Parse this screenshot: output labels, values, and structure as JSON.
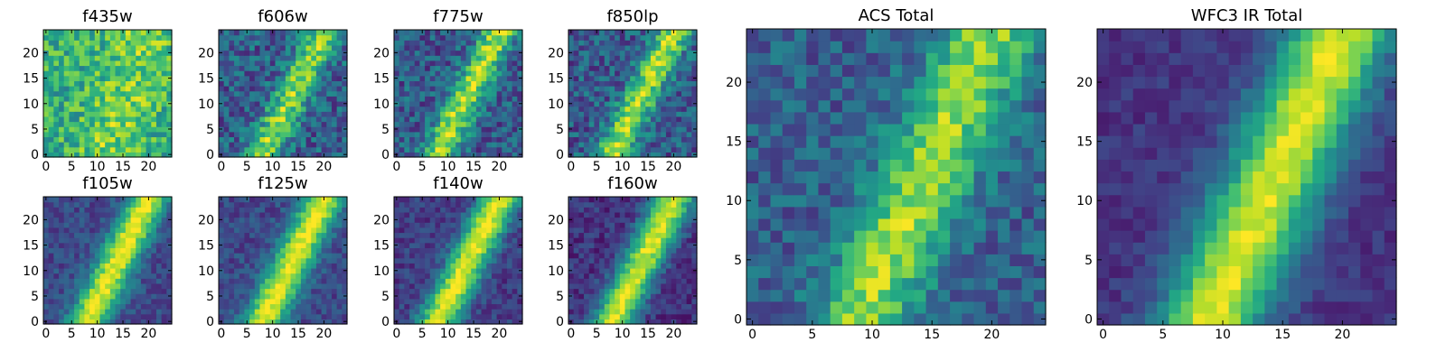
{
  "chart_data": [
    {
      "type": "heatmap",
      "title": "f435w",
      "grid_size": 25,
      "colormap": "viridis",
      "xticks": [
        0,
        5,
        10,
        15,
        20
      ],
      "yticks": [
        0,
        5,
        10,
        15,
        20
      ],
      "xlim": [
        -0.5,
        24.5
      ],
      "ylim": [
        -0.5,
        24.5
      ],
      "band": {
        "start": 12,
        "slope": 0.3,
        "width": 6,
        "amplitude": 0.18
      },
      "base": 0.62,
      "noise": 0.42,
      "seed": 11
    },
    {
      "type": "heatmap",
      "title": "f606w",
      "grid_size": 25,
      "colormap": "viridis",
      "xticks": [
        0,
        5,
        10,
        15,
        20
      ],
      "yticks": [
        0,
        5,
        10,
        15,
        20
      ],
      "xlim": [
        -0.5,
        24.5
      ],
      "ylim": [
        -0.5,
        24.5
      ],
      "band": {
        "start": 8,
        "slope": 0.5,
        "width": 3.5,
        "amplitude": 0.55
      },
      "base": 0.3,
      "noise": 0.4,
      "seed": 23
    },
    {
      "type": "heatmap",
      "title": "f775w",
      "grid_size": 25,
      "colormap": "viridis",
      "xticks": [
        0,
        5,
        10,
        15,
        20
      ],
      "yticks": [
        0,
        5,
        10,
        15,
        20
      ],
      "xlim": [
        -0.5,
        24.5
      ],
      "ylim": [
        -0.5,
        24.5
      ],
      "band": {
        "start": 8,
        "slope": 0.5,
        "width": 3.5,
        "amplitude": 0.6
      },
      "base": 0.28,
      "noise": 0.38,
      "seed": 37
    },
    {
      "type": "heatmap",
      "title": "f850lp",
      "grid_size": 25,
      "colormap": "viridis",
      "xticks": [
        0,
        5,
        10,
        15,
        20
      ],
      "yticks": [
        0,
        5,
        10,
        15,
        20
      ],
      "xlim": [
        -0.5,
        24.5
      ],
      "ylim": [
        -0.5,
        24.5
      ],
      "band": {
        "start": 8,
        "slope": 0.5,
        "width": 3.5,
        "amplitude": 0.6
      },
      "base": 0.28,
      "noise": 0.38,
      "seed": 41
    },
    {
      "type": "heatmap",
      "title": "f105w",
      "grid_size": 25,
      "colormap": "viridis",
      "xticks": [
        0,
        5,
        10,
        15,
        20
      ],
      "yticks": [
        0,
        5,
        10,
        15,
        20
      ],
      "xlim": [
        -0.5,
        24.5
      ],
      "ylim": [
        -0.5,
        24.5
      ],
      "band": {
        "start": 8,
        "slope": 0.5,
        "width": 4,
        "amplitude": 0.75
      },
      "base": 0.22,
      "noise": 0.22,
      "seed": 53
    },
    {
      "type": "heatmap",
      "title": "f125w",
      "grid_size": 25,
      "colormap": "viridis",
      "xticks": [
        0,
        5,
        10,
        15,
        20
      ],
      "yticks": [
        0,
        5,
        10,
        15,
        20
      ],
      "xlim": [
        -0.5,
        24.5
      ],
      "ylim": [
        -0.5,
        24.5
      ],
      "band": {
        "start": 8,
        "slope": 0.5,
        "width": 4,
        "amplitude": 0.75
      },
      "base": 0.22,
      "noise": 0.22,
      "seed": 61
    },
    {
      "type": "heatmap",
      "title": "f140w",
      "grid_size": 25,
      "colormap": "viridis",
      "xticks": [
        0,
        5,
        10,
        15,
        20
      ],
      "yticks": [
        0,
        5,
        10,
        15,
        20
      ],
      "xlim": [
        -0.5,
        24.5
      ],
      "ylim": [
        -0.5,
        24.5
      ],
      "band": {
        "start": 8,
        "slope": 0.5,
        "width": 4,
        "amplitude": 0.78
      },
      "base": 0.18,
      "noise": 0.22,
      "seed": 71
    },
    {
      "type": "heatmap",
      "title": "f160w",
      "grid_size": 25,
      "colormap": "viridis",
      "xticks": [
        0,
        5,
        10,
        15,
        20
      ],
      "yticks": [
        0,
        5,
        10,
        15,
        20
      ],
      "xlim": [
        -0.5,
        24.5
      ],
      "ylim": [
        -0.5,
        24.5
      ],
      "band": {
        "start": 8,
        "slope": 0.5,
        "width": 4,
        "amplitude": 0.8
      },
      "base": 0.15,
      "noise": 0.22,
      "seed": 83
    },
    {
      "type": "heatmap",
      "title": "ACS Total",
      "grid_size": 25,
      "colormap": "viridis",
      "xticks": [
        0,
        5,
        10,
        15,
        20
      ],
      "yticks": [
        0,
        5,
        10,
        15,
        20
      ],
      "xlim": [
        -0.5,
        24.5
      ],
      "ylim": [
        -0.5,
        24.5
      ],
      "band": {
        "start": 9,
        "slope": 0.45,
        "width": 4,
        "amplitude": 0.55
      },
      "base": 0.3,
      "noise": 0.3,
      "seed": 97
    },
    {
      "type": "heatmap",
      "title": "WFC3 IR Total",
      "grid_size": 25,
      "colormap": "viridis",
      "xticks": [
        0,
        5,
        10,
        15,
        20
      ],
      "yticks": [
        0,
        5,
        10,
        15,
        20
      ],
      "xlim": [
        -0.5,
        24.5
      ],
      "ylim": [
        -0.5,
        24.5
      ],
      "band": {
        "start": 9,
        "slope": 0.45,
        "width": 4.5,
        "amplitude": 0.8
      },
      "base": 0.15,
      "noise": 0.15,
      "seed": 101
    }
  ]
}
